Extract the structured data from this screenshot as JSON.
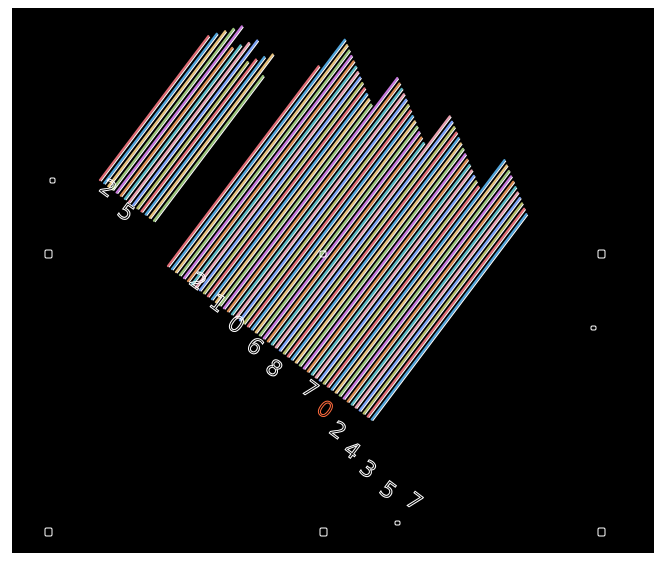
{
  "image": {
    "description_kind": "edge-detected barcode",
    "background_color": "#000000",
    "frame_color": "#ffffff",
    "outline_color": "#ffffff",
    "digits": [
      "2",
      "5",
      "2",
      "1",
      "0",
      "6",
      "8",
      "7",
      "0",
      "2",
      "4",
      "3",
      "5",
      "7"
    ],
    "bar_colors": [
      "#e06c75",
      "#4fa3d9",
      "#e5c07b",
      "#98c379",
      "#c678dd",
      "#d98b52",
      "#56b6c2",
      "#e8a0b0",
      "#7aa2f7",
      "#b5bd68"
    ]
  }
}
